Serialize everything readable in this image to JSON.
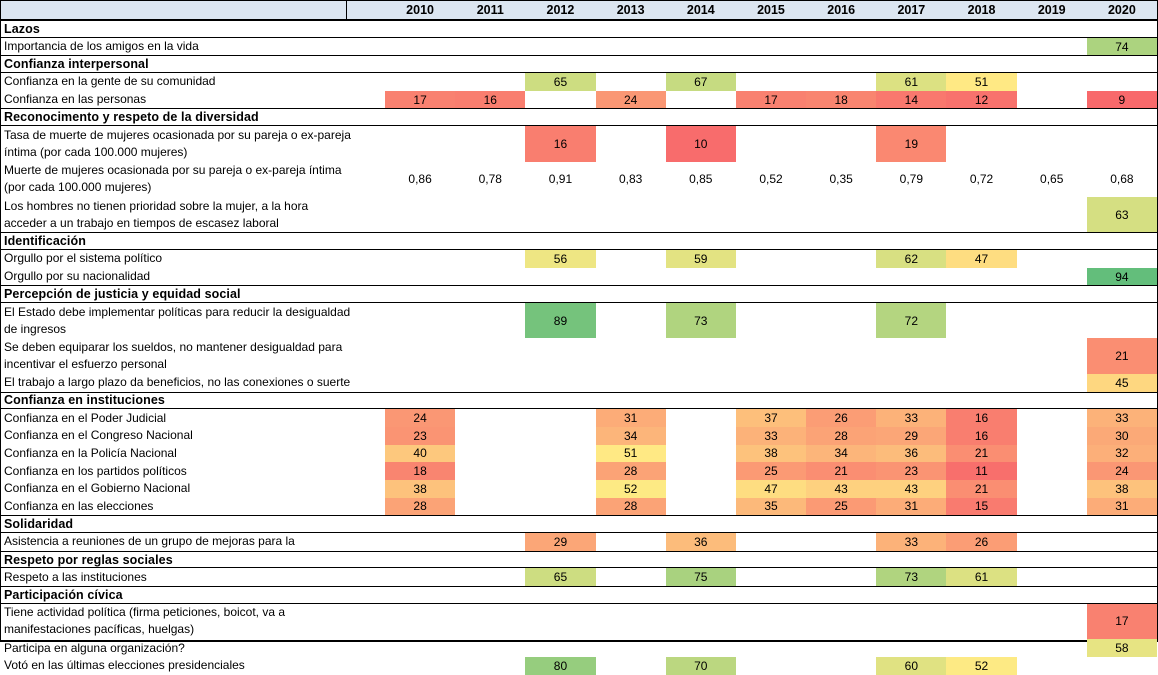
{
  "colors": {
    "header_background": "#DCE6F1",
    "border": "#000000",
    "text": "#000000"
  },
  "chart_data": {
    "type": "heatmap",
    "x": [
      "2010",
      "2011",
      "2012",
      "2013",
      "2014",
      "2015",
      "2016",
      "2017",
      "2018",
      "2019",
      "2020"
    ],
    "color_scale": {
      "min_value": 9,
      "mid_value": 51.5,
      "max_value": 94,
      "min_color": "#F8696B",
      "mid_color": "#FFEB84",
      "max_color": "#63BE7B"
    },
    "sections": [
      {
        "title": "Lazos",
        "rows": [
          {
            "label": "Importancia de los amigos en la vida",
            "two_line": false,
            "colored": true,
            "values": [
              null,
              null,
              null,
              null,
              null,
              null,
              null,
              null,
              null,
              null,
              74
            ]
          }
        ]
      },
      {
        "title": "Confianza interpersonal",
        "rows": [
          {
            "label": "Confianza en la gente de su comunidad",
            "two_line": false,
            "colored": true,
            "values": [
              null,
              null,
              65,
              null,
              67,
              null,
              null,
              61,
              51,
              null,
              null
            ]
          },
          {
            "label": "Confianza en las personas",
            "two_line": false,
            "colored": true,
            "values": [
              17,
              16,
              null,
              24,
              null,
              17,
              18,
              14,
              12,
              null,
              9
            ]
          }
        ]
      },
      {
        "title": "Reconocimento y respeto de la diversidad",
        "rows": [
          {
            "label": "Tasa de muerte de mujeres ocasionada por su pareja o ex-pareja\níntima (por cada 100.000 mujeres)",
            "two_line": true,
            "colored": true,
            "values": [
              null,
              null,
              16,
              null,
              10,
              null,
              null,
              19,
              null,
              null,
              null
            ]
          },
          {
            "label": "Muerte de mujeres ocasionada por su pareja o ex-pareja íntima\n(por cada 100.000 mujeres)",
            "two_line": true,
            "colored": false,
            "values": [
              "0,86",
              "0,78",
              "0,91",
              "0,83",
              "0,85",
              "0,52",
              "0,35",
              "0,79",
              "0,72",
              "0,65",
              "0,68"
            ]
          },
          {
            "label": "Los hombres no tienen prioridad sobre la mujer, a la hora\nacceder a un trabajo en tiempos de escasez laboral",
            "two_line": true,
            "colored": true,
            "values": [
              null,
              null,
              null,
              null,
              null,
              null,
              null,
              null,
              null,
              null,
              63
            ]
          }
        ]
      },
      {
        "title": "Identificación",
        "rows": [
          {
            "label": "Orgullo por el sistema político",
            "two_line": false,
            "colored": true,
            "values": [
              null,
              null,
              56,
              null,
              59,
              null,
              null,
              62,
              47,
              null,
              null
            ]
          },
          {
            "label": "Orgullo por su nacionalidad",
            "two_line": false,
            "colored": true,
            "values": [
              null,
              null,
              null,
              null,
              null,
              null,
              null,
              null,
              null,
              null,
              94
            ]
          }
        ]
      },
      {
        "title": "Percepción de justicia y equidad social",
        "rows": [
          {
            "label": "El Estado debe implementar políticas para reducir la desigualdad\nde ingresos",
            "two_line": true,
            "colored": true,
            "values": [
              null,
              null,
              89,
              null,
              73,
              null,
              null,
              72,
              null,
              null,
              null
            ]
          },
          {
            "label": "Se deben equiparar los sueldos, no mantener desigualdad para\nincentivar el esfuerzo personal",
            "two_line": true,
            "colored": true,
            "values": [
              null,
              null,
              null,
              null,
              null,
              null,
              null,
              null,
              null,
              null,
              21
            ]
          },
          {
            "label": "El trabajo a largo plazo da beneficios, no las conexiones o suerte",
            "two_line": false,
            "colored": true,
            "values": [
              null,
              null,
              null,
              null,
              null,
              null,
              null,
              null,
              null,
              null,
              45
            ]
          }
        ]
      },
      {
        "title": "Confianza en instituciones",
        "rows": [
          {
            "label": "Confianza en el Poder Judicial",
            "two_line": false,
            "colored": true,
            "values": [
              24,
              null,
              null,
              31,
              null,
              37,
              26,
              33,
              16,
              null,
              33
            ]
          },
          {
            "label": "Confianza en el Congreso Nacional",
            "two_line": false,
            "colored": true,
            "values": [
              23,
              null,
              null,
              34,
              null,
              33,
              28,
              29,
              16,
              null,
              30
            ]
          },
          {
            "label": "Confianza en la Policía Nacional",
            "two_line": false,
            "colored": true,
            "values": [
              40,
              null,
              null,
              51,
              null,
              38,
              34,
              36,
              21,
              null,
              32
            ]
          },
          {
            "label": "Confianza en los partidos políticos",
            "two_line": false,
            "colored": true,
            "values": [
              18,
              null,
              null,
              28,
              null,
              25,
              21,
              23,
              11,
              null,
              24
            ]
          },
          {
            "label": "Confianza en el Gobierno Nacional",
            "two_line": false,
            "colored": true,
            "values": [
              38,
              null,
              null,
              52,
              null,
              47,
              43,
              43,
              21,
              null,
              38
            ]
          },
          {
            "label": "Confianza en las elecciones",
            "two_line": false,
            "colored": true,
            "values": [
              28,
              null,
              null,
              28,
              null,
              35,
              25,
              31,
              15,
              null,
              31
            ]
          }
        ]
      },
      {
        "title": "Solidaridad",
        "rows": [
          {
            "label": "Asistencia a reuniones de un grupo de mejoras para la",
            "two_line": false,
            "colored": true,
            "values": [
              null,
              null,
              29,
              null,
              36,
              null,
              null,
              33,
              26,
              null,
              null
            ]
          }
        ]
      },
      {
        "title": "Respeto por reglas sociales",
        "rows": [
          {
            "label": "Respeto a las instituciones",
            "two_line": false,
            "colored": true,
            "values": [
              null,
              null,
              65,
              null,
              75,
              null,
              null,
              73,
              61,
              null,
              null
            ]
          }
        ]
      },
      {
        "title": "Participación cívica",
        "rows": [
          {
            "label": "Tiene actividad política (firma peticiones, boicot, va a\nmanifestaciones pacíficas, huelgas)",
            "two_line": true,
            "colored": true,
            "values": [
              null,
              null,
              null,
              null,
              null,
              null,
              null,
              null,
              null,
              null,
              17
            ]
          },
          {
            "label": "Participa en alguna organización?",
            "two_line": false,
            "colored": true,
            "values": [
              null,
              null,
              null,
              null,
              null,
              null,
              null,
              null,
              null,
              null,
              58
            ]
          },
          {
            "label": "Votó en las últimas elecciones presidenciales",
            "two_line": false,
            "colored": true,
            "values": [
              null,
              null,
              80,
              null,
              70,
              null,
              null,
              60,
              52,
              null,
              null
            ]
          }
        ]
      }
    ]
  }
}
